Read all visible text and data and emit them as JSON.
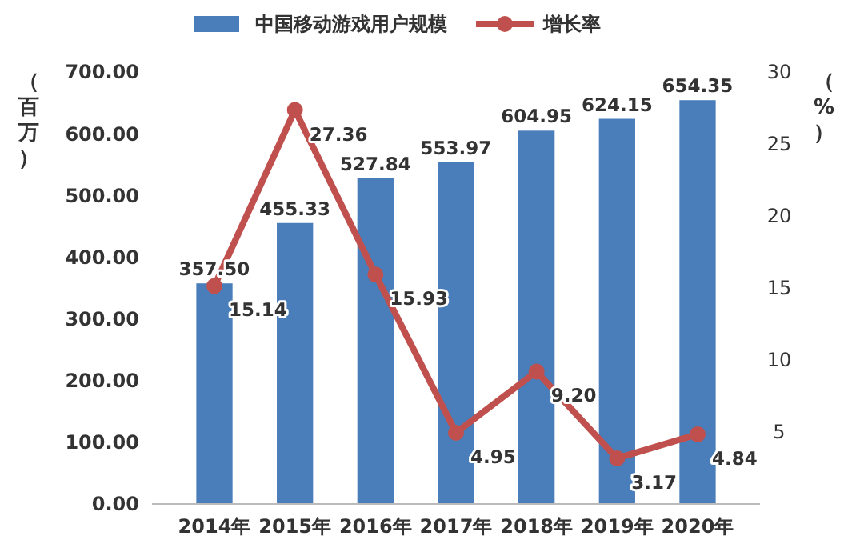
{
  "chart_data": {
    "type": "bar",
    "categories": [
      "2014年",
      "2015年",
      "2016年",
      "2017年",
      "2018年",
      "2019年",
      "2020年"
    ],
    "series": [
      {
        "name": "中国移动游戏用户规模",
        "color": "#4a7ebb",
        "values": [
          357.5,
          455.33,
          527.84,
          553.97,
          604.95,
          624.15,
          654.35
        ],
        "value_labels": [
          "357.50",
          "455.33",
          "527.84",
          "553.97",
          "604.95",
          "624.15",
          "654.35"
        ]
      },
      {
        "name": "增长率",
        "type": "line",
        "axis": "y2",
        "color": "#c0504d",
        "values": [
          15.14,
          27.36,
          15.93,
          4.95,
          9.2,
          3.17,
          4.84
        ],
        "value_labels": [
          "15.14",
          "27.36",
          "15.93",
          "4.95",
          "9.20",
          "3.17",
          "4.84"
        ]
      }
    ],
    "ylabel": "（百万）",
    "y2label": "（%）",
    "ylim": [
      0,
      700
    ],
    "yticks": [
      {
        "value": 0,
        "label": "0.00"
      },
      {
        "value": 100,
        "label": "100.00"
      },
      {
        "value": 200,
        "label": "200.00"
      },
      {
        "value": 300,
        "label": "300.00"
      },
      {
        "value": 400,
        "label": "400.00"
      },
      {
        "value": 500,
        "label": "500.00"
      },
      {
        "value": 600,
        "label": "600.00"
      },
      {
        "value": 700,
        "label": "700.00"
      }
    ],
    "y2lim": [
      0,
      30
    ],
    "y2ticks": [
      5,
      10,
      15,
      20,
      25,
      30
    ],
    "legend": "top",
    "marker": "circle",
    "grid": false
  }
}
